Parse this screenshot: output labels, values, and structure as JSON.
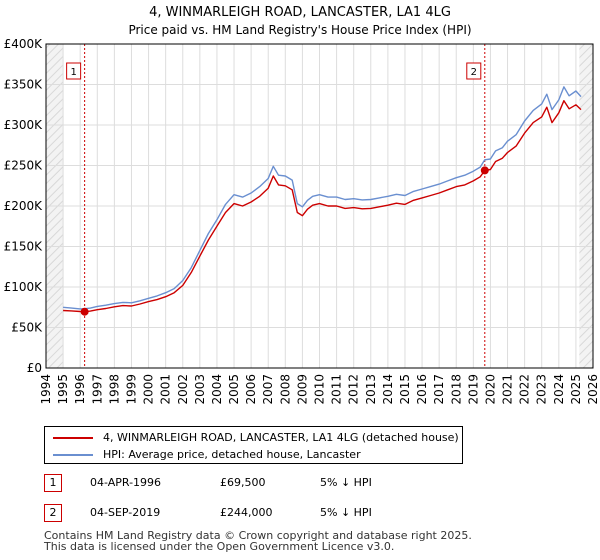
{
  "chart_data": {
    "type": "line",
    "title": "4, WINMARLEIGH ROAD, LANCASTER, LA1 4LG",
    "subtitle": "Price paid vs. HM Land Registry's House Price Index (HPI)",
    "xlabel": "",
    "ylabel": "",
    "xlim": [
      1994,
      2026
    ],
    "ylim": [
      0,
      400000
    ],
    "y_ticks": [
      0,
      50000,
      100000,
      150000,
      200000,
      250000,
      300000,
      350000,
      400000
    ],
    "y_tick_labels": [
      "£0",
      "£50K",
      "£100K",
      "£150K",
      "£200K",
      "£250K",
      "£300K",
      "£350K",
      "£400K"
    ],
    "x_ticks": [
      1994,
      1995,
      1996,
      1997,
      1998,
      1999,
      2000,
      2001,
      2002,
      2003,
      2004,
      2005,
      2006,
      2007,
      2008,
      2009,
      2010,
      2011,
      2012,
      2013,
      2014,
      2015,
      2016,
      2017,
      2018,
      2019,
      2020,
      2021,
      2022,
      2023,
      2024,
      2025,
      2026
    ],
    "x_tick_labels": [
      "1994",
      "1995",
      "1996",
      "1997",
      "1998",
      "1999",
      "2000",
      "2001",
      "2002",
      "2003",
      "2004",
      "2005",
      "2006",
      "2007",
      "2008",
      "2009",
      "2010",
      "2011",
      "2012",
      "2013",
      "2014",
      "2015",
      "2016",
      "2017",
      "2018",
      "2019",
      "2020",
      "2021",
      "2022",
      "2023",
      "2024",
      "2025",
      "2026"
    ],
    "grid": true,
    "hatched_ranges": [
      [
        1994,
        1995.0
      ],
      [
        2025.2,
        2026
      ]
    ],
    "series": [
      {
        "name": "4, WINMARLEIGH ROAD, LANCASTER, LA1 4LG (detached house)",
        "color": "#cc0000",
        "x": [
          1995.0,
          1995.5,
          1996.0,
          1996.26,
          1996.6,
          1997.0,
          1997.5,
          1998.0,
          1998.5,
          1999.0,
          1999.5,
          2000.0,
          2000.5,
          2001.0,
          2001.5,
          2002.0,
          2002.5,
          2003.0,
          2003.5,
          2004.0,
          2004.5,
          2005.0,
          2005.5,
          2006.0,
          2006.5,
          2007.0,
          2007.3,
          2007.6,
          2008.0,
          2008.4,
          2008.7,
          2009.0,
          2009.3,
          2009.6,
          2010.0,
          2010.5,
          2011.0,
          2011.5,
          2012.0,
          2012.5,
          2013.0,
          2013.5,
          2014.0,
          2014.5,
          2015.0,
          2015.5,
          2016.0,
          2016.5,
          2017.0,
          2017.5,
          2018.0,
          2018.5,
          2019.0,
          2019.4,
          2019.67,
          2020.0,
          2020.3,
          2020.7,
          2021.0,
          2021.5,
          2022.0,
          2022.5,
          2023.0,
          2023.3,
          2023.6,
          2024.0,
          2024.3,
          2024.6,
          2025.0,
          2025.3
        ],
        "y": [
          71000,
          70500,
          69800,
          69500,
          70200,
          72000,
          73500,
          75500,
          77000,
          76500,
          79000,
          82000,
          84500,
          88000,
          93000,
          102000,
          118000,
          138000,
          158000,
          175000,
          192000,
          203000,
          200000,
          205000,
          212000,
          222000,
          237000,
          226000,
          225000,
          220000,
          192000,
          188000,
          196000,
          201000,
          203000,
          200000,
          200000,
          197000,
          198000,
          196500,
          197000,
          199000,
          201000,
          203500,
          202000,
          207000,
          210000,
          213000,
          216000,
          220000,
          224000,
          226000,
          231000,
          236000,
          244000,
          245000,
          255000,
          259000,
          266000,
          274000,
          290000,
          303000,
          310000,
          322000,
          303000,
          315000,
          330000,
          320000,
          325000,
          319000
        ]
      },
      {
        "name": "HPI: Average price, detached house, Lancaster",
        "color": "#6a8fd0",
        "x": [
          1995.0,
          1995.5,
          1996.0,
          1996.26,
          1996.6,
          1997.0,
          1997.5,
          1998.0,
          1998.5,
          1999.0,
          1999.5,
          2000.0,
          2000.5,
          2001.0,
          2001.5,
          2002.0,
          2002.5,
          2003.0,
          2003.5,
          2004.0,
          2004.5,
          2005.0,
          2005.5,
          2006.0,
          2006.5,
          2007.0,
          2007.3,
          2007.6,
          2008.0,
          2008.4,
          2008.7,
          2009.0,
          2009.3,
          2009.6,
          2010.0,
          2010.5,
          2011.0,
          2011.5,
          2012.0,
          2012.5,
          2013.0,
          2013.5,
          2014.0,
          2014.5,
          2015.0,
          2015.5,
          2016.0,
          2016.5,
          2017.0,
          2017.5,
          2018.0,
          2018.5,
          2019.0,
          2019.4,
          2019.67,
          2020.0,
          2020.3,
          2020.7,
          2021.0,
          2021.5,
          2022.0,
          2022.5,
          2023.0,
          2023.3,
          2023.6,
          2024.0,
          2024.3,
          2024.6,
          2025.0,
          2025.3
        ],
        "y": [
          75000,
          74000,
          73000,
          73200,
          74000,
          76000,
          77500,
          79500,
          81000,
          80500,
          83000,
          86000,
          89000,
          93000,
          98000,
          108000,
          124000,
          145000,
          166000,
          183000,
          202000,
          214000,
          211000,
          216000,
          224000,
          234000,
          249000,
          238000,
          237000,
          232000,
          203000,
          199000,
          207000,
          212000,
          214000,
          211000,
          211000,
          208000,
          209000,
          207500,
          208000,
          210000,
          212000,
          214500,
          213000,
          218000,
          221000,
          224000,
          227000,
          231000,
          235000,
          238000,
          243000,
          248000,
          257000,
          258000,
          268000,
          272000,
          280000,
          288000,
          305000,
          318000,
          326000,
          338000,
          319000,
          331000,
          347000,
          336000,
          342000,
          335000
        ]
      }
    ],
    "annotations": [
      {
        "label": "1",
        "x": 1996.26,
        "y": 69500
      },
      {
        "label": "2",
        "x": 2019.67,
        "y": 244000
      }
    ]
  },
  "legend": {
    "property_label": "4, WINMARLEIGH ROAD, LANCASTER, LA1 4LG (detached house)",
    "hpi_label": "HPI: Average price, detached house, Lancaster"
  },
  "sales": [
    {
      "num": "1",
      "date": "04-APR-1996",
      "price": "£69,500",
      "hpi": "5% ↓ HPI"
    },
    {
      "num": "2",
      "date": "04-SEP-2019",
      "price": "£244,000",
      "hpi": "5% ↓ HPI"
    }
  ],
  "footer": "Contains HM Land Registry data © Crown copyright and database right 2025.\nThis data is licensed under the Open Government Licence v3.0.",
  "colors": {
    "property": "#cc0000",
    "hpi": "#6a8fd0",
    "grid": "#dddddd",
    "hatch": "#e6e6e6"
  }
}
